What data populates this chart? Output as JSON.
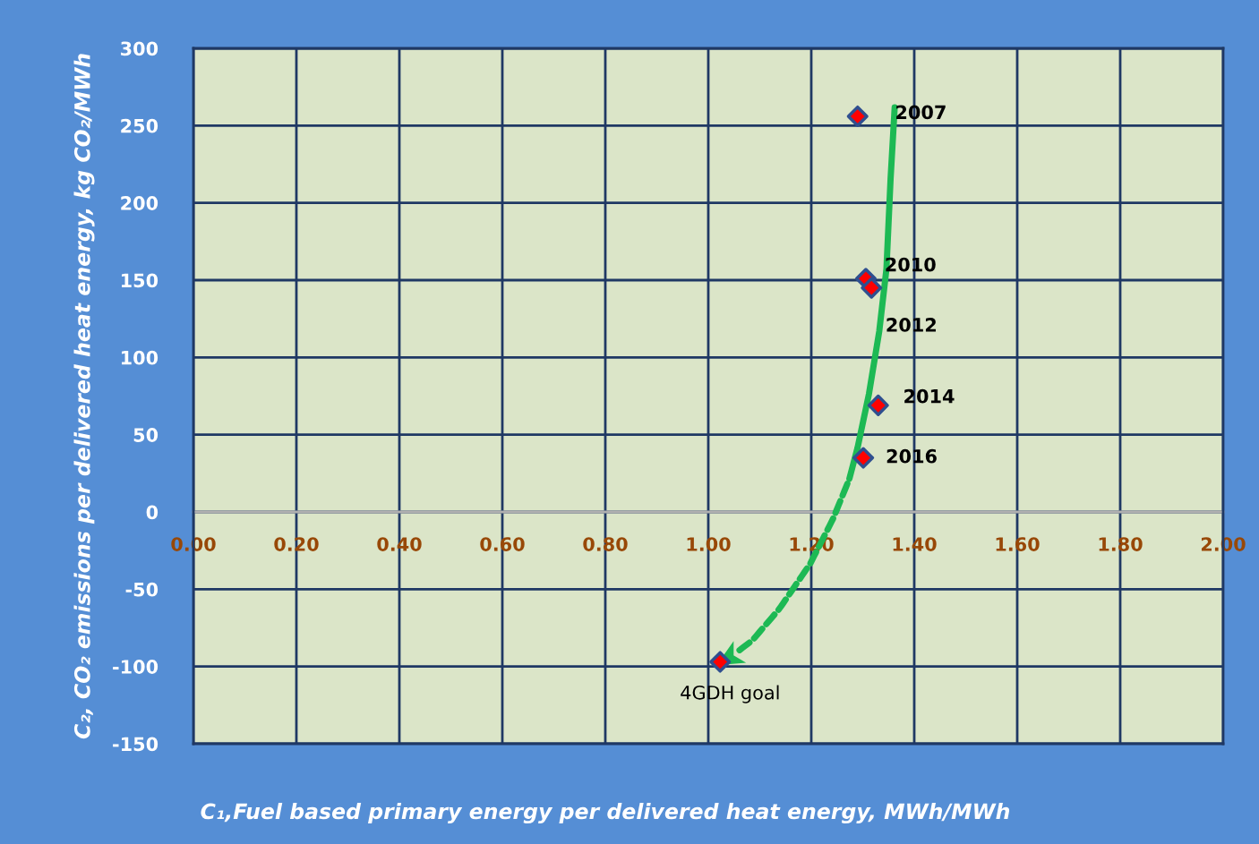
{
  "chart_data": {
    "type": "scatter",
    "xlabel": "C₁,Fuel based primary energy per delivered heat energy, MWh/MWh",
    "ylabel": "C₂, CO₂ emissions per delivered heat energy, kg CO₂/MWh",
    "x": [
      1.29,
      1.306,
      1.317,
      1.33,
      1.301,
      1.023
    ],
    "series": [
      {
        "color": "#ff0000",
        "values": [
          256,
          151,
          145,
          69,
          35,
          -97
        ]
      }
    ],
    "marker": "diamond",
    "xlim": [
      0,
      2
    ],
    "ylim": [
      -150,
      300
    ],
    "xticks": [
      {
        "value": 0,
        "label": "0.00"
      },
      {
        "value": 0.2,
        "label": "0.20"
      },
      {
        "value": 0.4,
        "label": "0.40"
      },
      {
        "value": 0.6,
        "label": "0.60"
      },
      {
        "value": 0.8,
        "label": "0.80"
      },
      {
        "value": 1.0,
        "label": "1.00"
      },
      {
        "value": 1.2,
        "label": "1.20"
      },
      {
        "value": 1.4,
        "label": "1.40"
      },
      {
        "value": 1.6,
        "label": "1.60"
      },
      {
        "value": 1.8,
        "label": "1.80"
      },
      {
        "value": 2.0,
        "label": "2.00"
      }
    ],
    "yticks": [
      -150,
      -100,
      -50,
      0,
      50,
      100,
      150,
      200,
      250,
      300
    ],
    "grid": true,
    "annotations": [
      {
        "text": "2007",
        "x": 1.29,
        "y": 256
      },
      {
        "text": "2010",
        "x": 1.306,
        "y": 151
      },
      "2012",
      {
        "text": "2014",
        "x": 1.33,
        "y": 69
      },
      {
        "text": "2016",
        "x": 1.301,
        "y": 35
      },
      {
        "text": "4GDH goal",
        "x": 1.023,
        "y": -97
      }
    ]
  }
}
